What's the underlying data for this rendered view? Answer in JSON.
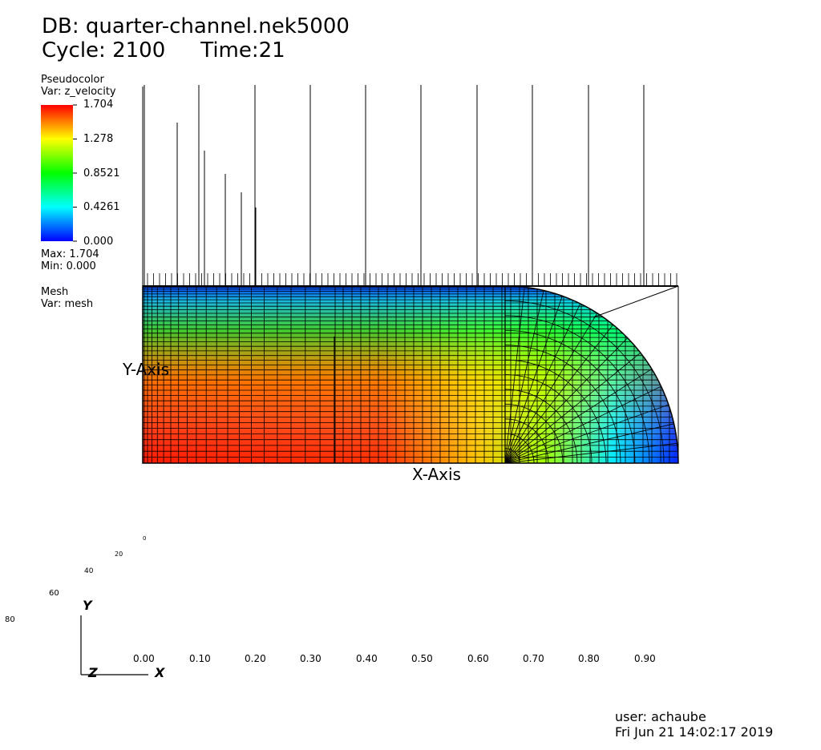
{
  "header": {
    "db_label": "DB: quarter-channel.nek5000",
    "cycle_label": "Cycle: 2100",
    "time_label": "Time:21"
  },
  "legend_pseudocolor": {
    "title": "Pseudocolor",
    "var": "Var: z_velocity",
    "ticks": [
      "1.704",
      "1.278",
      "0.8521",
      "0.4261",
      "0.000"
    ],
    "max": "Max:  1.704",
    "min": "Min:  0.000",
    "colors": [
      "#ff0000",
      "#ffff00",
      "#00ff00",
      "#00ffff",
      "#0000ff"
    ]
  },
  "legend_mesh": {
    "title": "Mesh",
    "var": "Var: mesh"
  },
  "axes": {
    "x_label": "X-Axis",
    "y_label": "Y-Axis",
    "x_ticks": [
      "0.00",
      "0.10",
      "0.20",
      "0.30",
      "0.40",
      "0.50",
      "0.60",
      "0.70",
      "0.80",
      "0.90"
    ],
    "z_ticks": [
      "0",
      "20",
      "40",
      "60",
      "80"
    ],
    "triad": {
      "y": "Y",
      "z": "Z",
      "x": "X"
    }
  },
  "footer": {
    "user": "user: achaube",
    "date": "Fri Jun 21 14:02:17 2019"
  }
}
